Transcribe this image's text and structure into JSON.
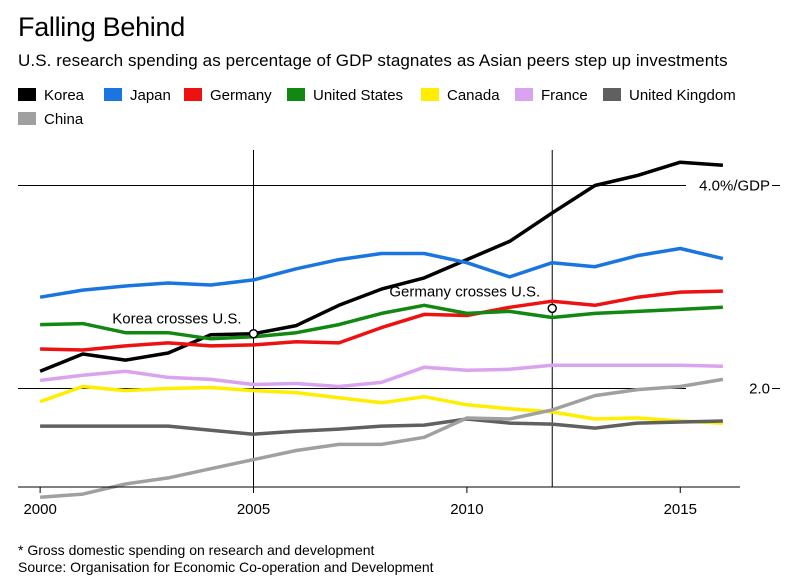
{
  "title": "Falling Behind",
  "subtitle": "U.S. research spending as percentage of GDP stagnates as Asian peers step up investments",
  "footnote": "* Gross domestic spending on research and development",
  "source": "Source: Organisation for Economic Co-operation and Development",
  "chart_data": {
    "type": "line",
    "title": "Falling Behind",
    "xlabel": "",
    "ylabel": "",
    "x": [
      2000,
      2001,
      2002,
      2003,
      2004,
      2005,
      2006,
      2007,
      2008,
      2009,
      2010,
      2011,
      2012,
      2013,
      2014,
      2015,
      2016
    ],
    "xticks": [
      2000,
      2005,
      2010,
      2015
    ],
    "xtick_labels": [
      "2000",
      "2005",
      "2010",
      "2015"
    ],
    "xlim": [
      1999.95,
      2016.4
    ],
    "ylim": [
      1.03,
      4.35
    ],
    "ygrid": [
      {
        "value": 4.0,
        "label": "4.0%/GDP"
      },
      {
        "value": 2.0,
        "label": "2.0"
      }
    ],
    "vlines": [
      2005,
      2012
    ],
    "annotations": [
      {
        "text": "Korea crosses U.S.",
        "x": 2005,
        "y": 2.54
      },
      {
        "text": "Germany crosses U.S.",
        "x": 2012,
        "y": 2.79
      }
    ],
    "series": [
      {
        "name": "Korea",
        "color": "#000000",
        "values": [
          2.17,
          2.34,
          2.28,
          2.35,
          2.53,
          2.54,
          2.62,
          2.82,
          2.98,
          3.09,
          3.27,
          3.45,
          3.73,
          4.0,
          4.1,
          4.23,
          4.2
        ]
      },
      {
        "name": "Japan",
        "color": "#1a75e0",
        "values": [
          2.9,
          2.97,
          3.01,
          3.04,
          3.02,
          3.07,
          3.18,
          3.27,
          3.33,
          3.33,
          3.24,
          3.1,
          3.24,
          3.2,
          3.31,
          3.38,
          3.28
        ]
      },
      {
        "name": "Germany",
        "color": "#ee1111",
        "values": [
          2.39,
          2.38,
          2.42,
          2.45,
          2.42,
          2.43,
          2.46,
          2.45,
          2.6,
          2.73,
          2.72,
          2.8,
          2.86,
          2.82,
          2.9,
          2.95,
          2.96
        ]
      },
      {
        "name": "United States",
        "color": "#118811",
        "values": [
          2.63,
          2.64,
          2.55,
          2.55,
          2.49,
          2.51,
          2.55,
          2.63,
          2.74,
          2.82,
          2.74,
          2.76,
          2.7,
          2.74,
          2.76,
          2.78,
          2.8
        ]
      },
      {
        "name": "Canada",
        "color": "#ffee00",
        "values": [
          1.87,
          2.02,
          1.98,
          2.0,
          2.01,
          1.98,
          1.96,
          1.91,
          1.86,
          1.92,
          1.84,
          1.8,
          1.77,
          1.7,
          1.71,
          1.68,
          1.66
        ]
      },
      {
        "name": "France",
        "color": "#d9a3ef",
        "values": [
          2.08,
          2.13,
          2.17,
          2.11,
          2.09,
          2.04,
          2.05,
          2.02,
          2.06,
          2.21,
          2.18,
          2.19,
          2.23,
          2.23,
          2.23,
          2.23,
          2.22
        ]
      },
      {
        "name": "United Kingdom",
        "color": "#606060",
        "values": [
          1.63,
          1.63,
          1.63,
          1.63,
          1.59,
          1.55,
          1.58,
          1.6,
          1.63,
          1.64,
          1.7,
          1.66,
          1.65,
          1.61,
          1.66,
          1.67,
          1.68
        ]
      },
      {
        "name": "China",
        "color": "#a0a0a0",
        "values": [
          0.93,
          0.96,
          1.06,
          1.12,
          1.21,
          1.3,
          1.39,
          1.45,
          1.45,
          1.52,
          1.71,
          1.7,
          1.79,
          1.93,
          1.99,
          2.02,
          2.09
        ]
      }
    ],
    "legend_position": "top"
  }
}
